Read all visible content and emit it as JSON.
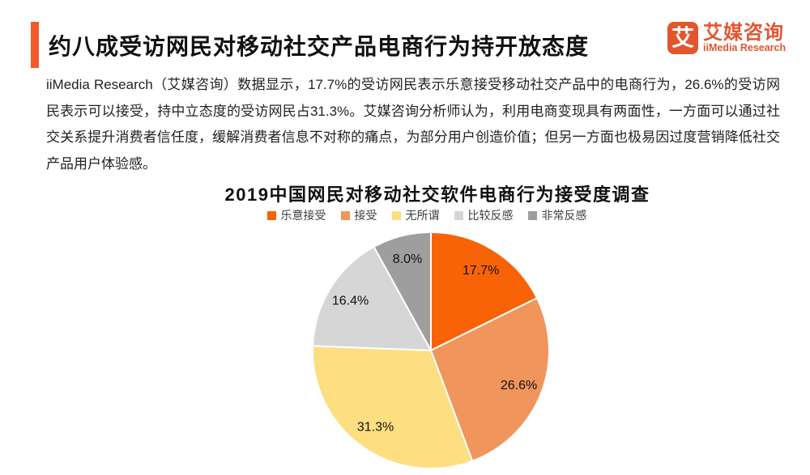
{
  "page": {
    "title": "约八成受访网民对移动社交产品电商行为持开放态度",
    "paragraph": "iiMedia Research（艾媒咨询）数据显示，17.7%的受访网民表示乐意接受移动社交产品中的电商行为，26.6%的受访网民表示可以接受，持中立态度的受访网民占31.3%。艾媒咨询分析师认为，利用电商变现具有两面性，一方面可以通过社交关系提升消费者信任度，缓解消费者信息不对称的痛点，为部分用户创造价值；但另一方面也极易因过度营销降低社交产品用户体验感。"
  },
  "logo": {
    "glyph": "艾",
    "name_cn": "艾媒咨询",
    "name_en": "iiMedia Research"
  },
  "colors": {
    "accent_bar": "#F4582B",
    "logo_orange": "#E2562E",
    "title_text": "#111111",
    "body_text": "#222222"
  },
  "chart_data": {
    "type": "pie",
    "title": "2019中国网民对移动社交软件电商行为接受度调查",
    "categories": [
      "乐意接受",
      "接受",
      "无所谓",
      "比较反感",
      "非常反感"
    ],
    "values": [
      17.7,
      26.6,
      31.3,
      16.4,
      8.0
    ],
    "labels": [
      "17.7%",
      "26.6%",
      "31.3%",
      "16.4%",
      "8.0%"
    ],
    "colors": [
      "#F86307",
      "#F0955B",
      "#FDDE81",
      "#D6D6D6",
      "#9E9E9E"
    ],
    "legend_position": "top",
    "start_angle_deg": 0,
    "direction": "clockwise",
    "label_color": "#111111"
  }
}
